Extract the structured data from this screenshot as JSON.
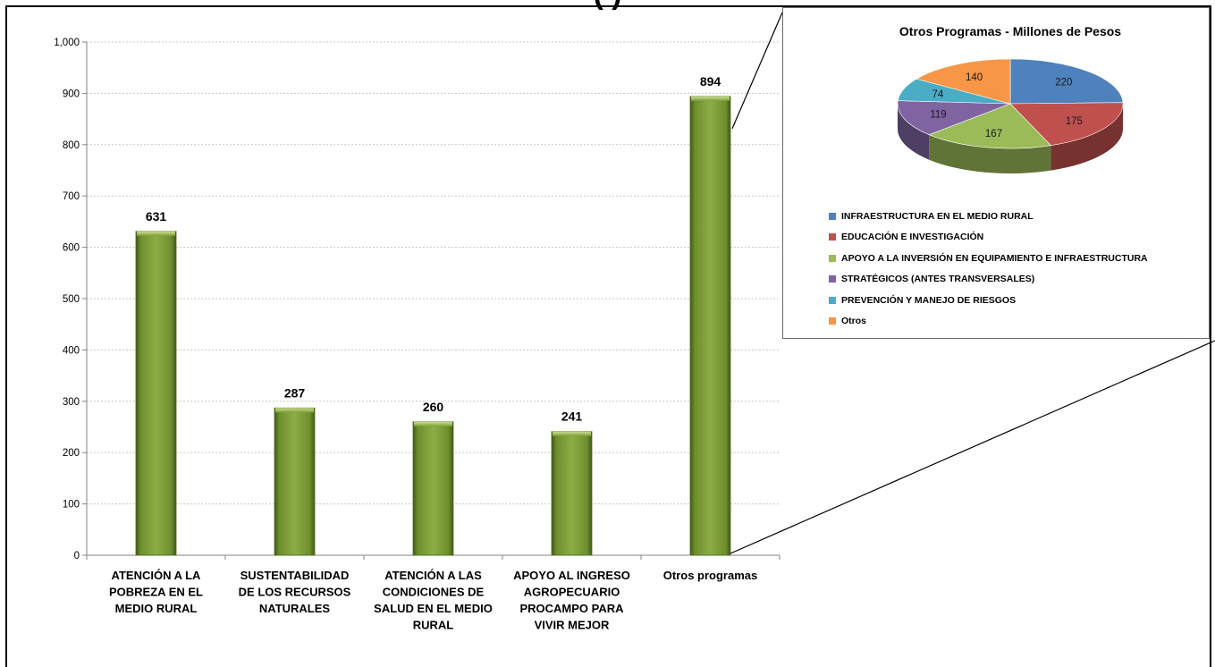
{
  "page_title_fragment": "(                   )",
  "chart_data": [
    {
      "type": "bar",
      "title": "",
      "xlabel": "",
      "ylabel": "",
      "ylim": [
        0,
        1000
      ],
      "yticks": [
        "0",
        "100",
        "200",
        "300",
        "400",
        "500",
        "600",
        "700",
        "800",
        "900",
        "1,000"
      ],
      "grid": true,
      "categories": [
        [
          "ATENCIÓN A LA",
          "POBREZA EN EL",
          "MEDIO RURAL"
        ],
        [
          "SUSTENTABILIDAD",
          "DE LOS RECURSOS",
          "NATURALES"
        ],
        [
          "ATENCIÓN A LAS",
          "CONDICIONES DE",
          "SALUD EN EL MEDIO",
          "RURAL"
        ],
        [
          "APOYO AL INGRESO",
          "AGROPECUARIO",
          "PROCAMPO PARA",
          "VIVIR MEJOR"
        ],
        [
          "Otros programas"
        ]
      ],
      "values": [
        631,
        287,
        260,
        241,
        894
      ],
      "data_labels": [
        "631",
        "287",
        "260",
        "241",
        "894"
      ],
      "bar_color": "#7a9a3a"
    },
    {
      "type": "pie",
      "title": "Otros Programas - Millones de Pesos",
      "legend_position": "bottom-left",
      "slices": [
        {
          "label": "INFRAESTRUCTURA EN EL MEDIO RURAL",
          "value": 220,
          "color": "#4f81bd"
        },
        {
          "label": "EDUCACIÓN E INVESTIGACIÓN",
          "value": 175,
          "color": "#c0504d"
        },
        {
          "label": "APOYO A LA INVERSIÓN EN EQUIPAMIENTO E INFRAESTRUCTURA",
          "value": 167,
          "color": "#9bbb59"
        },
        {
          "label": "STRATÉGICOS (ANTES TRANSVERSALES)",
          "value": 119,
          "color": "#8064a2"
        },
        {
          "label": "PREVENCIÓN Y MANEJO DE RIESGOS",
          "value": 74,
          "color": "#4bacc6"
        },
        {
          "label": "Otros",
          "value": 140,
          "color": "#f79646"
        }
      ]
    }
  ]
}
